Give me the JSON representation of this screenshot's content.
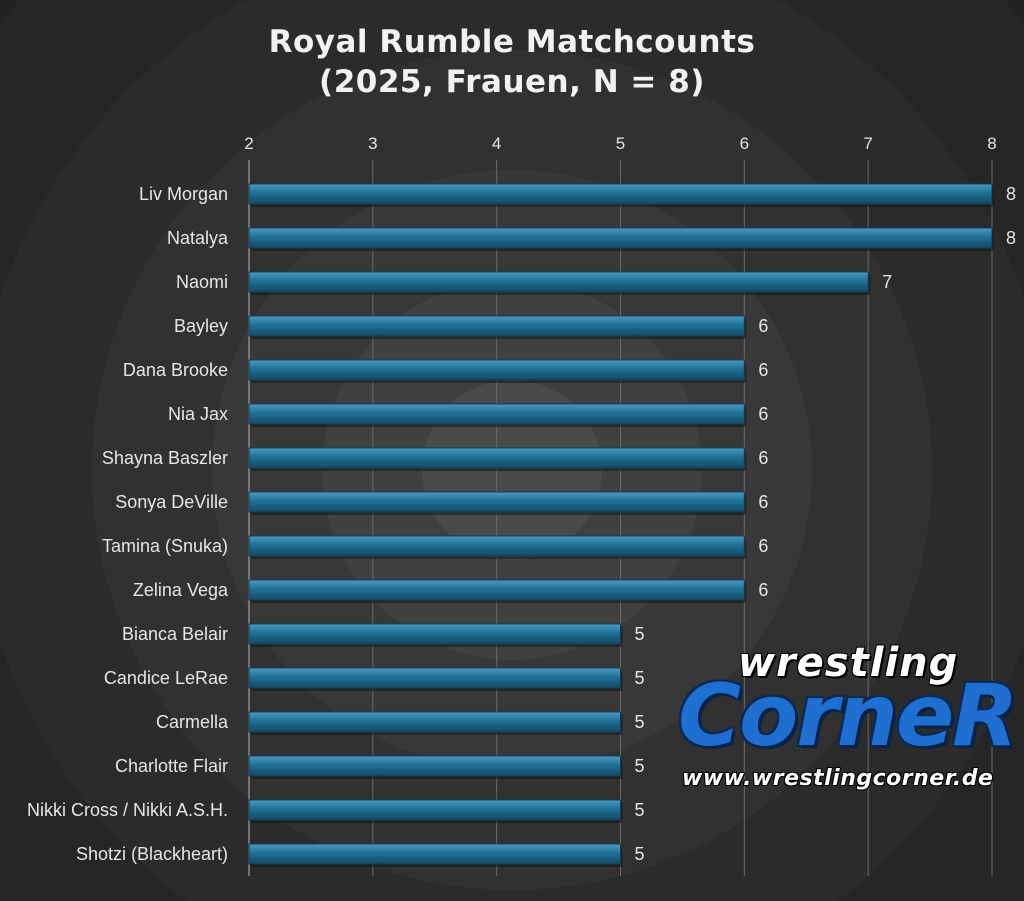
{
  "chart_data": {
    "type": "bar",
    "orientation": "horizontal",
    "title_line1": "Royal Rumble Matchcounts",
    "title_line2": "(2025, Frauen, N = 8)",
    "xlim": [
      2,
      8
    ],
    "x_ticks": [
      "2",
      "3",
      "4",
      "5",
      "6",
      "7",
      "8"
    ],
    "grid": "vertical",
    "axis_position": "top",
    "bar_color": "#1f6f95",
    "categories": [
      "Liv Morgan",
      "Natalya",
      "Naomi",
      "Bayley",
      "Dana Brooke",
      "Nia Jax",
      "Shayna Baszler",
      "Sonya DeVille",
      "Tamina (Snuka)",
      "Zelina Vega",
      "Bianca Belair",
      "Candice LeRae",
      "Carmella",
      "Charlotte Flair",
      "Nikki Cross / Nikki A.S.H.",
      "Shotzi (Blackheart)"
    ],
    "values": [
      8,
      8,
      7,
      6,
      6,
      6,
      6,
      6,
      6,
      6,
      5,
      5,
      5,
      5,
      5,
      5
    ]
  },
  "logo": {
    "line1": "wrestling",
    "line2": "CorneR",
    "line3": "www.wrestlingcorner.de"
  }
}
